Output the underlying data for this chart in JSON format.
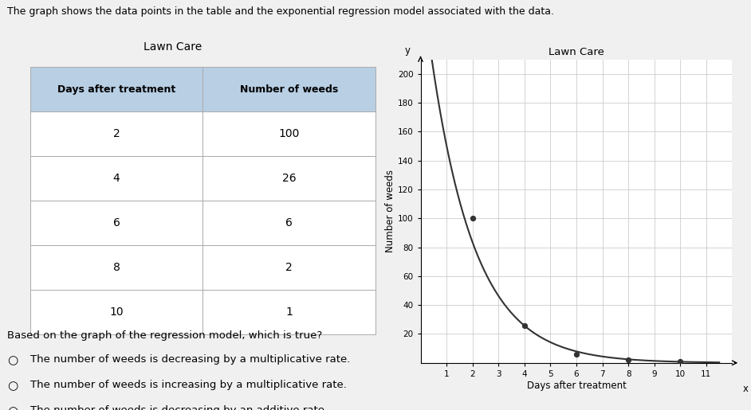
{
  "title_main": "The graph shows the data points in the table and the exponential regression model associated with the data.",
  "chart_title": "Lawn Care",
  "table_title": "Lawn Care",
  "xlabel": "Days after treatment",
  "ylabel": "Number of weeds",
  "xlim": [
    0,
    12
  ],
  "ylim": [
    0,
    210
  ],
  "xticks": [
    1,
    2,
    3,
    4,
    5,
    6,
    7,
    8,
    9,
    10,
    11
  ],
  "yticks": [
    20,
    40,
    60,
    80,
    100,
    120,
    140,
    160,
    180,
    200
  ],
  "data_x": [
    2,
    4,
    6,
    8,
    10
  ],
  "data_y": [
    100,
    26,
    6,
    2,
    1
  ],
  "table_headers": [
    "Days after treatment",
    "Number of weeds"
  ],
  "table_rows": [
    [
      2,
      100
    ],
    [
      4,
      26
    ],
    [
      6,
      6
    ],
    [
      8,
      2
    ],
    [
      10,
      1
    ]
  ],
  "question": "Based on the graph of the regression model, which is true?",
  "options": [
    "The number of weeds is decreasing by a multiplicative rate.",
    "The number of weeds is increasing by a multiplicative rate.",
    "The number of weeds is decreasing by an additive rate."
  ],
  "curve_color": "#333333",
  "dot_color": "#333333",
  "table_header_bg": "#b8cfe4",
  "background_color": "#f0f0f0",
  "grid_color": "#cccccc"
}
